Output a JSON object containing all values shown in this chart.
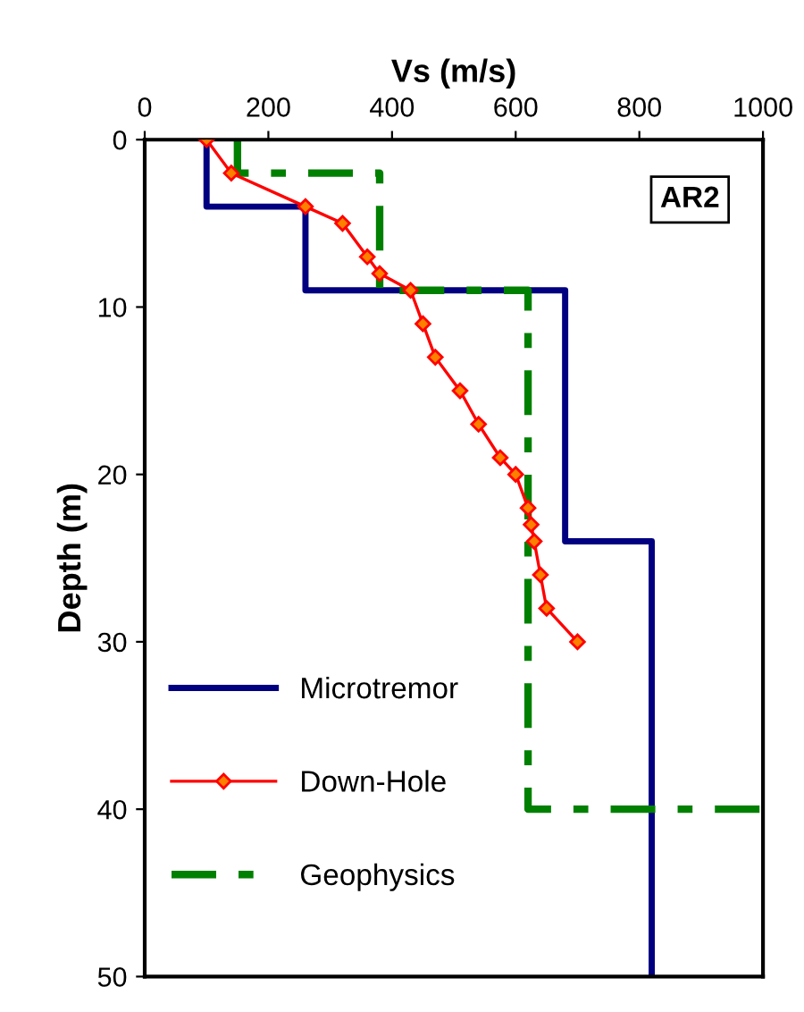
{
  "chart_data": {
    "type": "line",
    "xlabel": "Vs (m/s)",
    "ylabel": "Depth (m)",
    "annotations": [
      "AR2"
    ],
    "xlim": [
      0,
      1000
    ],
    "xticks": [
      0,
      200,
      400,
      600,
      800,
      1000
    ],
    "ylim": [
      50,
      0
    ],
    "yticks": [
      0,
      10,
      20,
      30,
      40,
      50
    ],
    "grid": false,
    "legend": "bottom left",
    "series": [
      {
        "name": "Microtremor",
        "color": "#000080",
        "line_style": "solid",
        "marker": "none",
        "x": [
          100,
          100,
          260,
          260,
          680,
          680,
          820,
          820
        ],
        "values": [
          0,
          4,
          4,
          9,
          9,
          24,
          24,
          50
        ]
      },
      {
        "name": "Down-Hole",
        "color": "#ff0000",
        "line_style": "solid",
        "marker": "diamond",
        "x": [
          100,
          140,
          260,
          320,
          360,
          380,
          430,
          450,
          470,
          510,
          540,
          575,
          600,
          620,
          625,
          630,
          640,
          650,
          700
        ],
        "values": [
          0,
          2,
          4,
          5,
          7,
          8,
          9,
          11,
          13,
          15,
          17,
          19,
          20,
          22,
          23,
          24,
          26,
          28,
          30
        ]
      },
      {
        "name": "Geophysics",
        "color": "#008000",
        "line_style": "dashed",
        "marker": "none",
        "x": [
          150,
          150,
          380,
          380,
          620,
          620,
          1000
        ],
        "values": [
          0,
          2,
          2,
          9,
          9,
          40,
          40
        ]
      }
    ]
  }
}
